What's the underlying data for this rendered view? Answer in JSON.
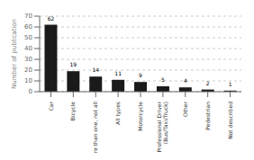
{
  "chart_data": {
    "type": "bar",
    "ylabel": "Number of publication",
    "categories": [
      "Car",
      "Bicycle",
      "More than one, not all",
      "All types",
      "Motorcycle",
      "Professional Driver\n(Bus/Taxi/Truck)",
      "Other",
      "Pedestrian",
      "Not described"
    ],
    "values": [
      62,
      19,
      14,
      11,
      9,
      5,
      4,
      2,
      1
    ],
    "color": "#1a1a1a",
    "ylim": [
      0,
      70
    ],
    "yticks": [
      0,
      10,
      20,
      30,
      40,
      50,
      60,
      70
    ],
    "grid": true,
    "data_labels": true
  }
}
